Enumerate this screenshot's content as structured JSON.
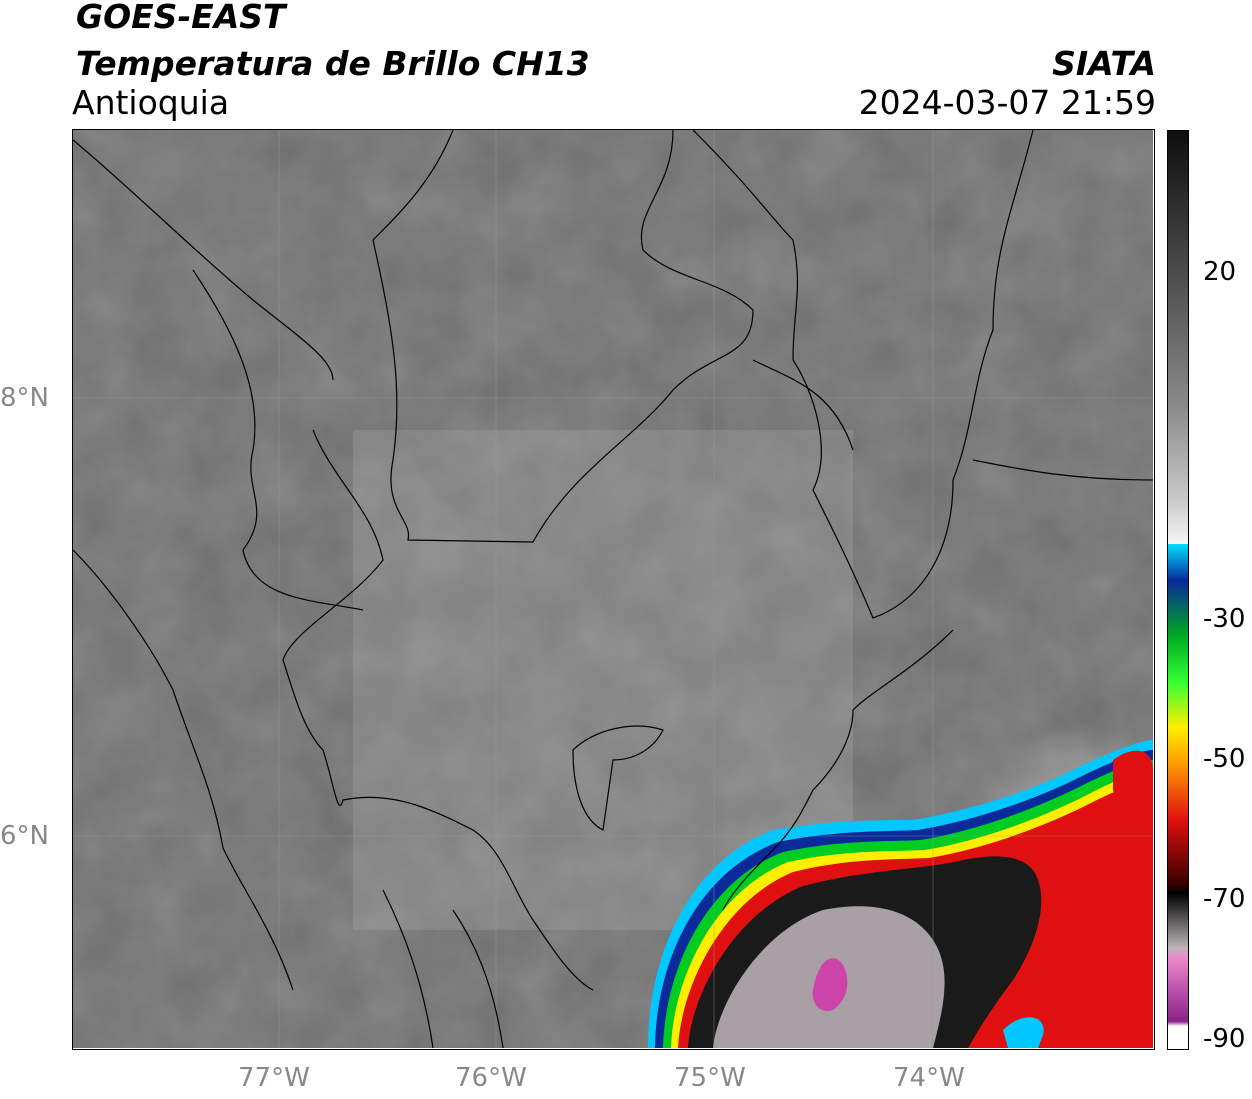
{
  "header": {
    "satellite": "GOES-EAST",
    "product": "Temperatura de Brillo CH13",
    "region": "Antioquia",
    "org": "SIATA",
    "datetime": "2024-03-07 21:59"
  },
  "map": {
    "lat_labels": [
      "8°N",
      "6°N"
    ],
    "lon_labels": [
      "77°W",
      "76°W",
      "75°W",
      "74°W"
    ],
    "lat_range": [
      5.05,
      9.25
    ],
    "lon_range": [
      -77.95,
      -73.0
    ]
  },
  "colorbar": {
    "ticks": [
      "20",
      "-30",
      "-50",
      "-70",
      "-90"
    ],
    "range": [
      -90,
      40
    ],
    "colors": {
      "magenta": "#cc44aa",
      "red": "#e01010",
      "yellow": "#ffee00",
      "green": "#00cc22",
      "cyan": "#00c8ff",
      "blue": "#0a2a9a"
    }
  }
}
